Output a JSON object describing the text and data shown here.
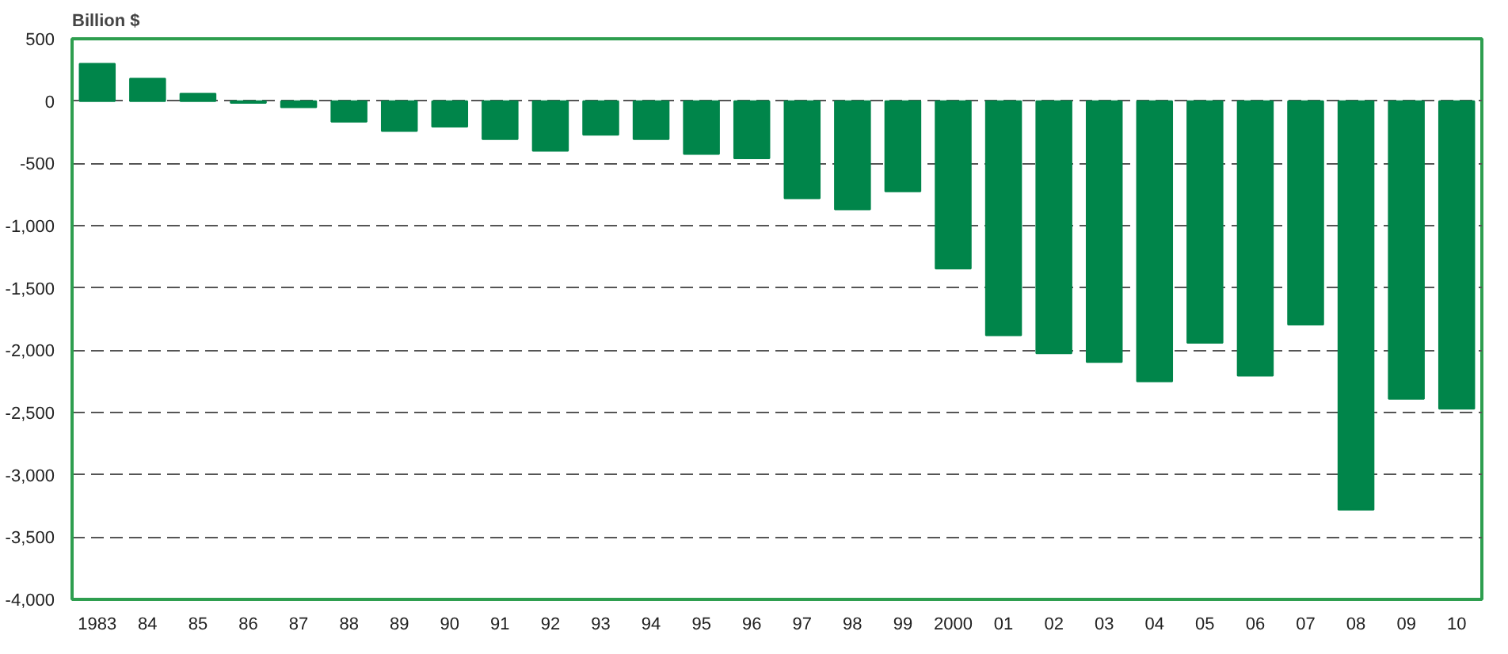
{
  "chart_data": {
    "type": "bar",
    "ylabel": "Billion $",
    "categories": [
      "1983",
      "84",
      "85",
      "86",
      "87",
      "88",
      "89",
      "90",
      "91",
      "92",
      "93",
      "94",
      "95",
      "96",
      "97",
      "98",
      "99",
      "2000",
      "01",
      "02",
      "03",
      "04",
      "05",
      "06",
      "07",
      "08",
      "09",
      "10"
    ],
    "values": [
      300,
      180,
      60,
      -15,
      -50,
      -165,
      -240,
      -205,
      -305,
      -400,
      -270,
      -305,
      -425,
      -460,
      -780,
      -870,
      -725,
      -1345,
      -1880,
      -2025,
      -2095,
      -2250,
      -1940,
      -2205,
      -1795,
      -3280,
      -2390,
      -2470
    ],
    "color": "#00854a",
    "ylim": [
      -4000,
      500
    ],
    "yticks": [
      500,
      0,
      {
        "value": -500,
        "label": "-500"
      },
      {
        "value": -1000,
        "label": "-1,000"
      },
      {
        "value": -1500,
        "label": "-1,500"
      },
      {
        "value": -2000,
        "label": "-2,000"
      },
      {
        "value": -2500,
        "label": "-2,500"
      },
      {
        "value": -3000,
        "label": "-3,000"
      },
      {
        "value": -3500,
        "label": "-3,500"
      },
      {
        "value": -4000,
        "label": "-4,000"
      }
    ],
    "grid": "y",
    "line_style": "dashed"
  }
}
